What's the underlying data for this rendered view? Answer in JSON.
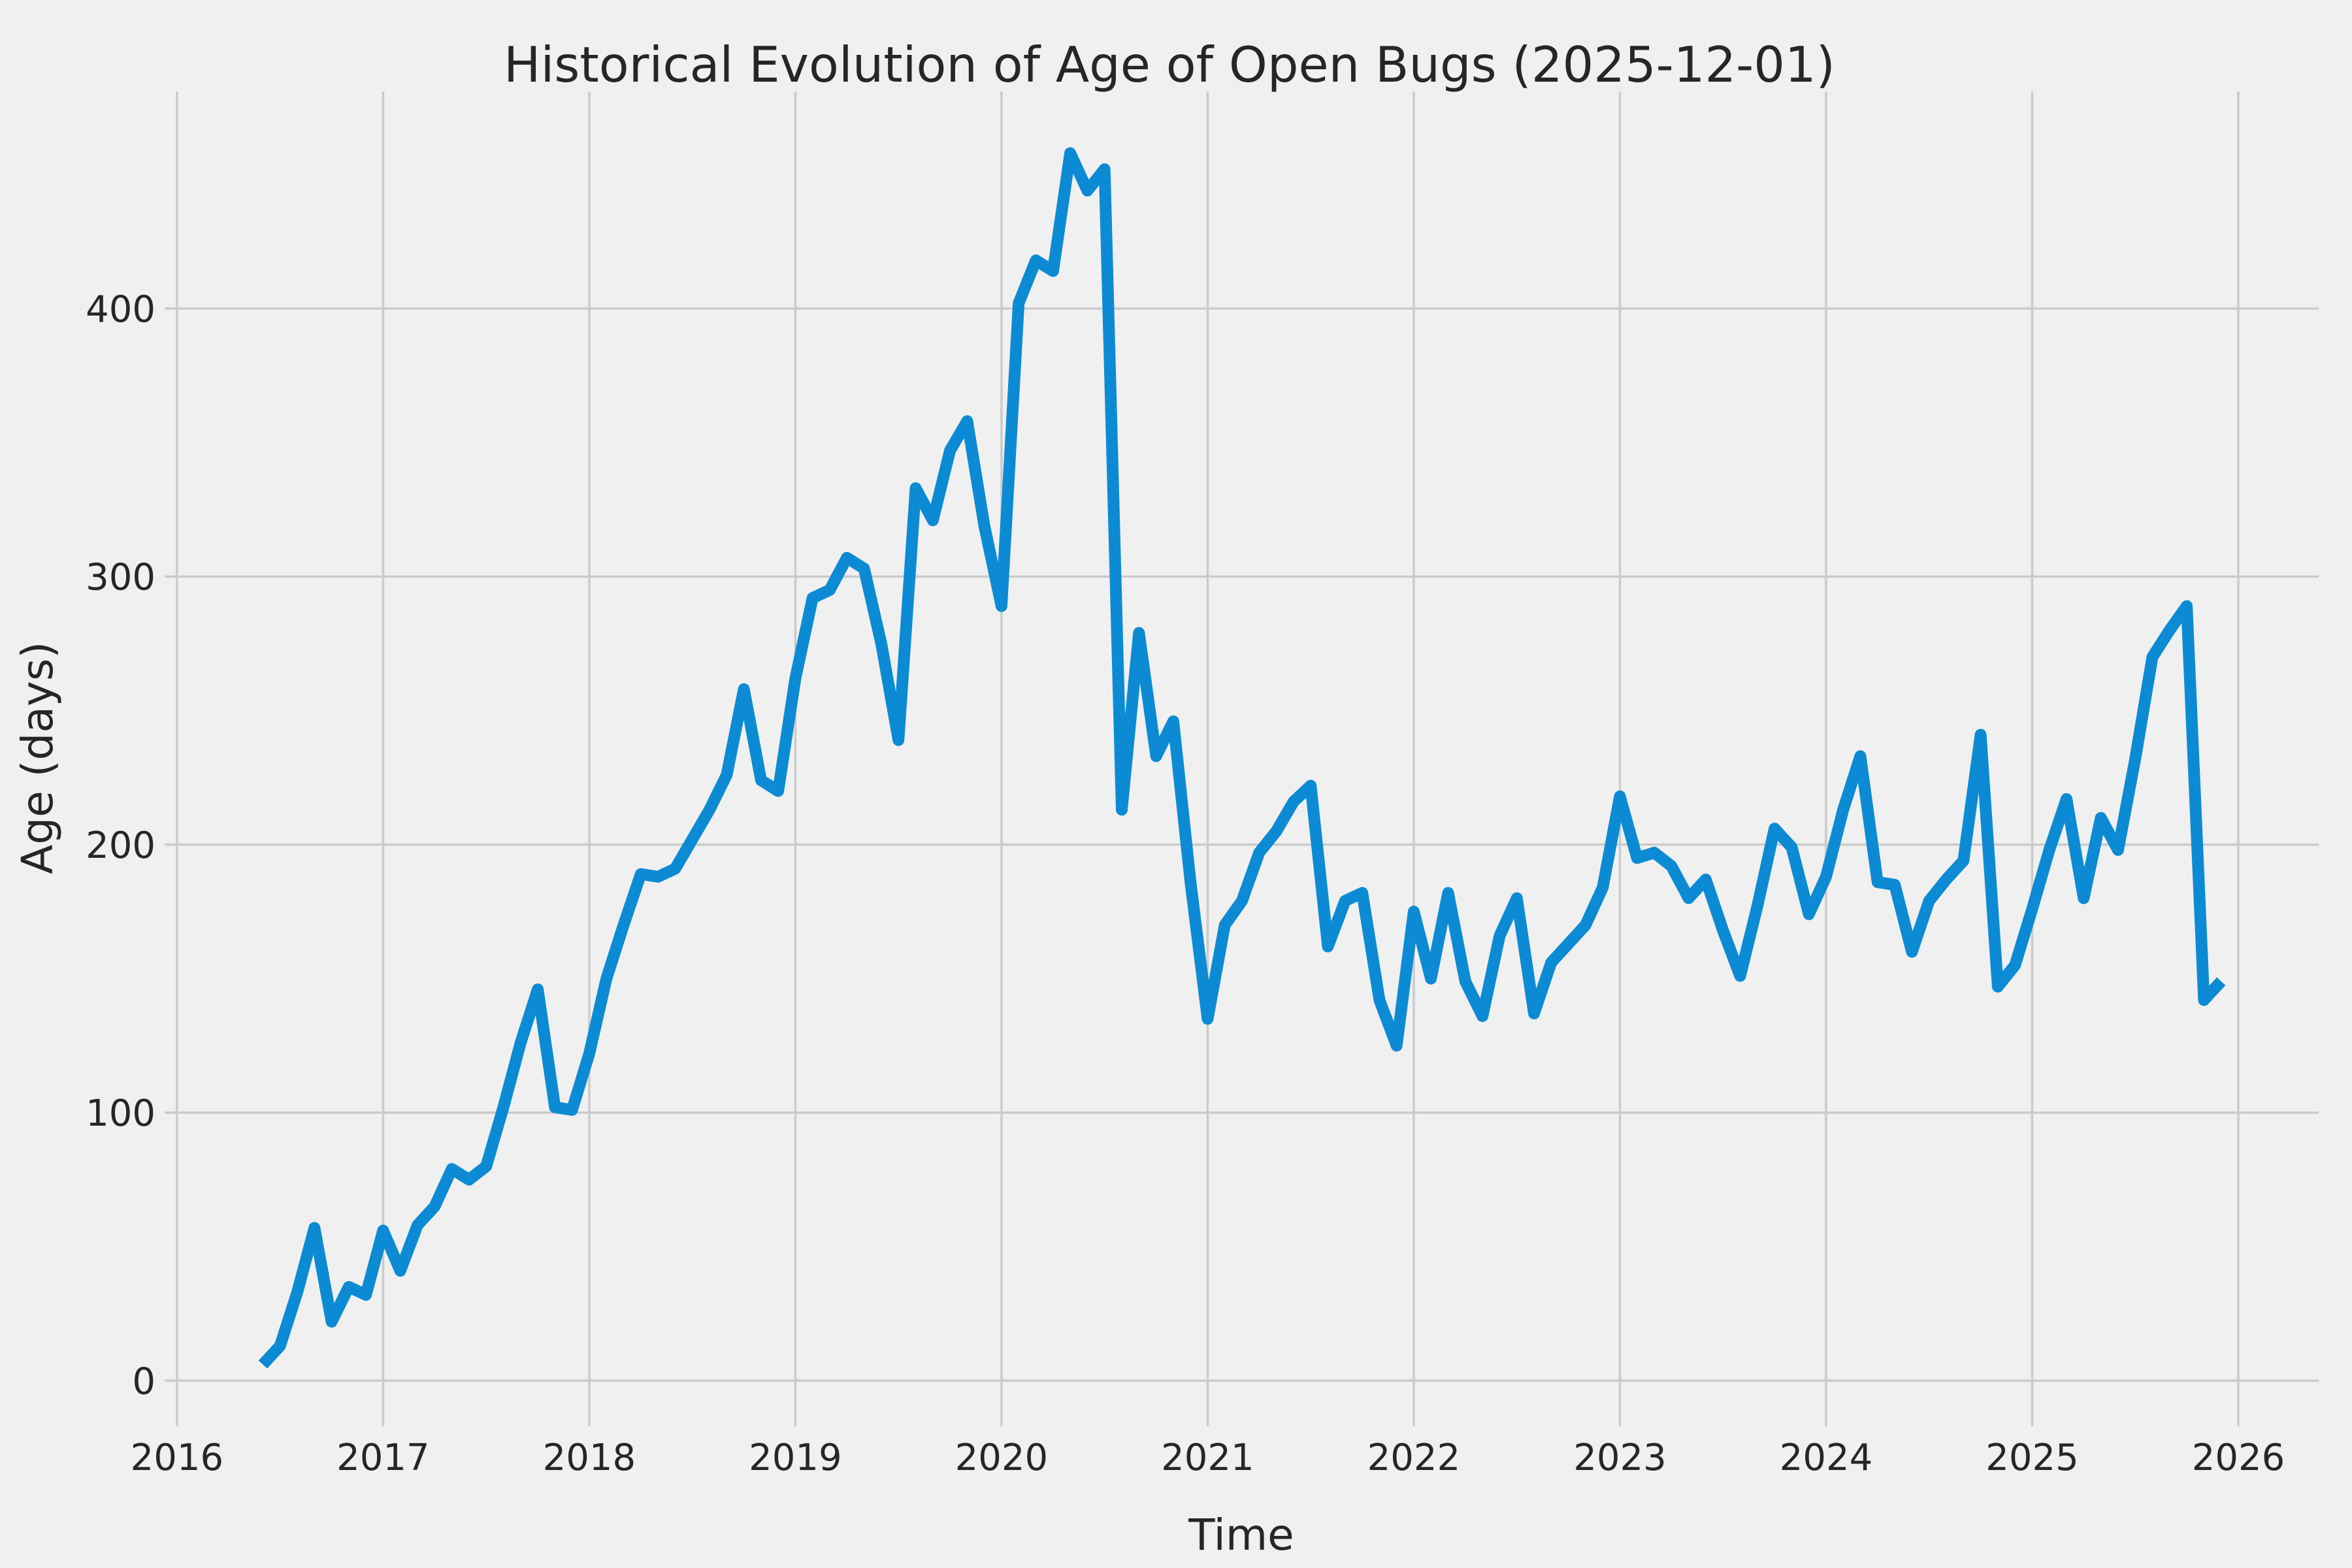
{
  "chart_data": {
    "type": "line",
    "title": "Historical Evolution of Age of Open Bugs (2025-12-01)",
    "xlabel": "Time",
    "ylabel": "Age (days)",
    "x_ticks": [
      2016,
      2017,
      2018,
      2019,
      2020,
      2021,
      2022,
      2023,
      2024,
      2025,
      2026
    ],
    "y_ticks": [
      0,
      100,
      200,
      300,
      400
    ],
    "xlim": [
      2015.94,
      2026.39
    ],
    "ylim": [
      -17,
      481
    ],
    "grid": true,
    "legend_position": "none",
    "colors": {
      "line": "#0c8bd4",
      "background": "#f0f0f0",
      "gridline": "#cbcbcb",
      "text": "#262626"
    },
    "series": [
      {
        "name": "age-of-open-bugs",
        "points": [
          [
            "2016-06",
            6
          ],
          [
            "2016-07",
            13
          ],
          [
            "2016-08",
            33
          ],
          [
            "2016-09",
            57
          ],
          [
            "2016-10",
            22
          ],
          [
            "2016-11",
            35
          ],
          [
            "2016-12",
            32
          ],
          [
            "2017-01",
            56
          ],
          [
            "2017-02",
            41
          ],
          [
            "2017-03",
            58
          ],
          [
            "2017-04",
            65
          ],
          [
            "2017-05",
            79
          ],
          [
            "2017-06",
            75
          ],
          [
            "2017-07",
            80
          ],
          [
            "2017-08",
            102
          ],
          [
            "2017-09",
            126
          ],
          [
            "2017-10",
            146
          ],
          [
            "2017-11",
            102
          ],
          [
            "2017-12",
            101
          ],
          [
            "2018-01",
            122
          ],
          [
            "2018-02",
            150
          ],
          [
            "2018-03",
            170
          ],
          [
            "2018-04",
            189
          ],
          [
            "2018-05",
            188
          ],
          [
            "2018-06",
            191
          ],
          [
            "2018-07",
            202
          ],
          [
            "2018-08",
            213
          ],
          [
            "2018-09",
            226
          ],
          [
            "2018-10",
            258
          ],
          [
            "2018-11",
            224
          ],
          [
            "2018-12",
            220
          ],
          [
            "2019-01",
            262
          ],
          [
            "2019-02",
            292
          ],
          [
            "2019-03",
            295
          ],
          [
            "2019-04",
            307
          ],
          [
            "2019-05",
            303
          ],
          [
            "2019-06",
            275
          ],
          [
            "2019-07",
            239
          ],
          [
            "2019-08",
            333
          ],
          [
            "2019-09",
            321
          ],
          [
            "2019-10",
            347
          ],
          [
            "2019-11",
            358
          ],
          [
            "2019-12",
            319
          ],
          [
            "2020-01",
            289
          ],
          [
            "2020-02",
            402
          ],
          [
            "2020-03",
            418
          ],
          [
            "2020-04",
            414
          ],
          [
            "2020-05",
            458
          ],
          [
            "2020-06",
            444
          ],
          [
            "2020-07",
            452
          ],
          [
            "2020-08",
            213
          ],
          [
            "2020-09",
            279
          ],
          [
            "2020-10",
            233
          ],
          [
            "2020-11",
            246
          ],
          [
            "2020-12",
            186
          ],
          [
            "2021-01",
            135
          ],
          [
            "2021-02",
            170
          ],
          [
            "2021-03",
            179
          ],
          [
            "2021-04",
            197
          ],
          [
            "2021-05",
            205
          ],
          [
            "2021-06",
            216
          ],
          [
            "2021-07",
            222
          ],
          [
            "2021-08",
            162
          ],
          [
            "2021-09",
            179
          ],
          [
            "2021-10",
            182
          ],
          [
            "2021-11",
            142
          ],
          [
            "2021-12",
            125
          ],
          [
            "2022-01",
            175
          ],
          [
            "2022-02",
            150
          ],
          [
            "2022-03",
            182
          ],
          [
            "2022-04",
            149
          ],
          [
            "2022-05",
            136
          ],
          [
            "2022-06",
            166
          ],
          [
            "2022-07",
            180
          ],
          [
            "2022-08",
            137
          ],
          [
            "2022-09",
            156
          ],
          [
            "2022-10",
            163
          ],
          [
            "2022-11",
            170
          ],
          [
            "2022-12",
            184
          ],
          [
            "2023-01",
            218
          ],
          [
            "2023-02",
            195
          ],
          [
            "2023-03",
            197
          ],
          [
            "2023-04",
            192
          ],
          [
            "2023-05",
            180
          ],
          [
            "2023-06",
            187
          ],
          [
            "2023-07",
            168
          ],
          [
            "2023-08",
            151
          ],
          [
            "2023-09",
            177
          ],
          [
            "2023-10",
            206
          ],
          [
            "2023-11",
            199
          ],
          [
            "2023-12",
            174
          ],
          [
            "2024-01",
            188
          ],
          [
            "2024-02",
            213
          ],
          [
            "2024-03",
            233
          ],
          [
            "2024-04",
            186
          ],
          [
            "2024-05",
            185
          ],
          [
            "2024-06",
            160
          ],
          [
            "2024-07",
            179
          ],
          [
            "2024-08",
            187
          ],
          [
            "2024-09",
            194
          ],
          [
            "2024-10",
            241
          ],
          [
            "2024-11",
            147
          ],
          [
            "2024-12",
            155
          ],
          [
            "2025-01",
            176
          ],
          [
            "2025-02",
            198
          ],
          [
            "2025-03",
            217
          ],
          [
            "2025-04",
            180
          ],
          [
            "2025-05",
            210
          ],
          [
            "2025-06",
            198
          ],
          [
            "2025-07",
            232
          ],
          [
            "2025-08",
            270
          ],
          [
            "2025-09",
            280
          ],
          [
            "2025-10",
            289
          ],
          [
            "2025-11",
            142
          ],
          [
            "2025-12",
            149
          ]
        ]
      }
    ]
  }
}
